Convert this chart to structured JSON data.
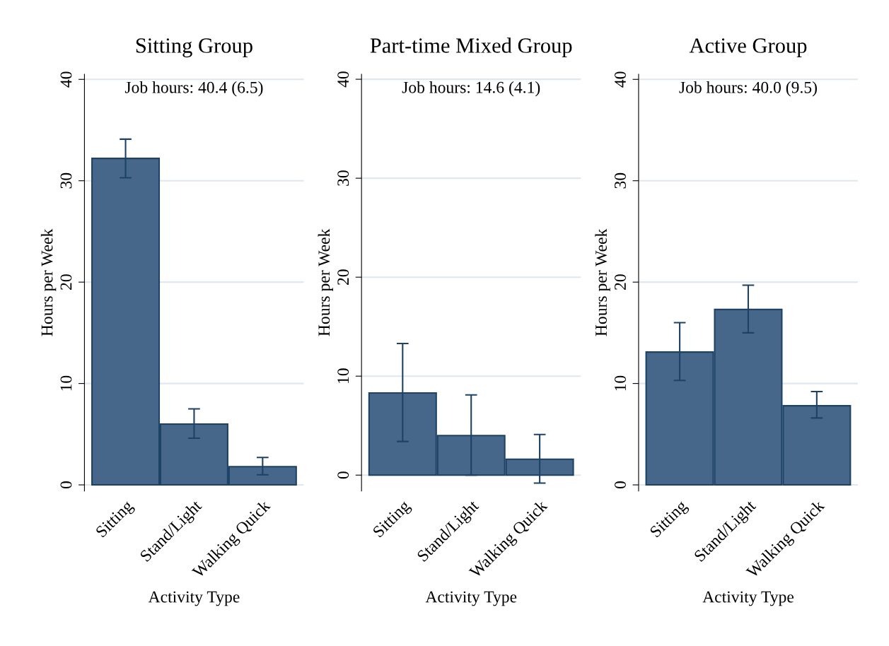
{
  "chart_data": [
    {
      "type": "bar",
      "title": "Sitting Group",
      "annotations": [
        "Job hours: 40.4 (6.5)"
      ],
      "xlabel": "Activity Type",
      "ylabel": "Hours per Week",
      "categories": [
        "Sitting",
        "Stand/Light",
        "Walking Quick"
      ],
      "values": [
        32.2,
        6.0,
        1.8
      ],
      "errors": [
        [
          30.3,
          34.1
        ],
        [
          4.6,
          7.5
        ],
        [
          1.0,
          2.7
        ]
      ],
      "color": "#46678a",
      "ylim": [
        -0.6,
        40.5
      ],
      "yticks": [
        0,
        10,
        20,
        30,
        40
      ],
      "grid": "y"
    },
    {
      "type": "bar",
      "title": "Part-time Mixed Group",
      "annotations": [
        "Job hours: 14.6 (4.1)"
      ],
      "xlabel": "Activity Type",
      "ylabel": "Hours per Week",
      "categories": [
        "Sitting",
        "Stand/Light",
        "Walking Quick"
      ],
      "values": [
        8.3,
        4.0,
        1.6
      ],
      "errors": [
        [
          3.4,
          13.3
        ],
        [
          0.0,
          8.1
        ],
        [
          -0.8,
          4.1
        ]
      ],
      "color": "#46678a",
      "ylim": [
        -1.6,
        40.5
      ],
      "yticks": [
        0,
        10,
        20,
        30,
        40
      ],
      "grid": "y"
    },
    {
      "type": "bar",
      "title": "Active Group",
      "annotations": [
        "Job hours: 40.0 (9.5)"
      ],
      "xlabel": "Activity Type",
      "ylabel": "Hours per Week",
      "categories": [
        "Sitting",
        "Stand/Light",
        "Walking Quick"
      ],
      "values": [
        13.1,
        17.3,
        7.8
      ],
      "errors": [
        [
          10.3,
          16.0
        ],
        [
          15.0,
          19.7
        ],
        [
          6.6,
          9.2
        ]
      ],
      "color": "#46678a",
      "ylim": [
        -0.6,
        40.5
      ],
      "yticks": [
        0,
        10,
        20,
        30,
        40
      ],
      "grid": "y"
    }
  ]
}
